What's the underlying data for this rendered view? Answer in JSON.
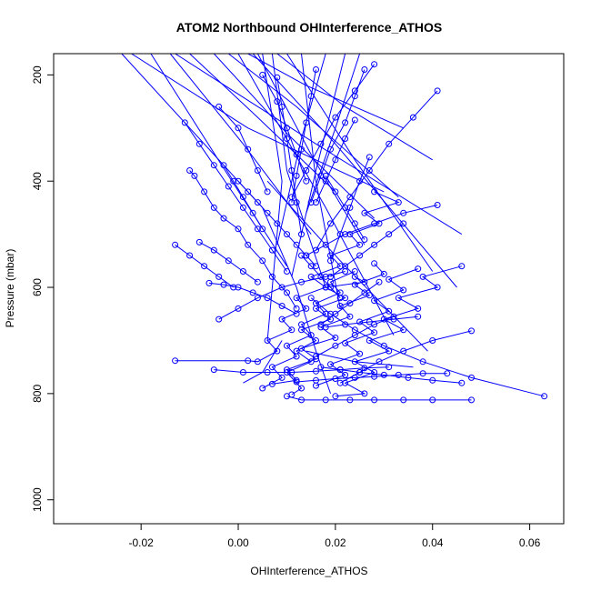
{
  "chart_data": {
    "type": "line",
    "title": "ATOM2 Northbound OHInterference_ATHOS",
    "xlabel": "OHInterference_ATHOS",
    "ylabel": "Pressure (mbar)",
    "xlim": [
      -0.038,
      0.067
    ],
    "ylim": [
      1045,
      160
    ],
    "y_inverted": true,
    "grid": false,
    "legend": "none",
    "line_color": "#0000ff",
    "marker": "open-circle",
    "x_ticks": [
      {
        "value": -0.02,
        "label": "-0.02"
      },
      {
        "value": 0.0,
        "label": "0.00"
      },
      {
        "value": 0.02,
        "label": "0.02"
      },
      {
        "value": 0.04,
        "label": "0.04"
      },
      {
        "value": 0.06,
        "label": "0.06"
      }
    ],
    "y_ticks": [
      {
        "value": 200,
        "label": "200"
      },
      {
        "value": 400,
        "label": "400"
      },
      {
        "value": 600,
        "label": "600"
      },
      {
        "value": 800,
        "label": "800"
      },
      {
        "value": 1000,
        "label": "1000"
      }
    ],
    "series": [
      {
        "x": [
          0.011,
          0.013,
          0.01,
          0.015,
          0.012,
          0.016,
          0.013,
          0.019,
          0.016,
          0.022,
          0.018,
          0.026,
          0.024
        ],
        "y": [
          802,
          790,
          760,
          740,
          720,
          700,
          680,
          660,
          640,
          620,
          600,
          590,
          580
        ]
      },
      {
        "x": [
          -0.013,
          0.002,
          0.004,
          0.008,
          0.006,
          0.011,
          0.009,
          0.014,
          0.012,
          0.018,
          0.015,
          0.021,
          0.019,
          0.025,
          0.023,
          0.029,
          0.026,
          0.033,
          0.028
        ],
        "y": [
          738,
          738,
          740,
          720,
          700,
          680,
          660,
          640,
          620,
          600,
          580,
          560,
          540,
          520,
          500,
          480,
          460,
          440,
          420
        ]
      },
      {
        "x": [
          0.02,
          0.026,
          0.022,
          0.028,
          0.024,
          0.031,
          0.027,
          0.034,
          0.03,
          0.037,
          0.033,
          0.041,
          0.038,
          0.046
        ],
        "y": [
          805,
          800,
          780,
          760,
          740,
          720,
          700,
          680,
          660,
          640,
          620,
          600,
          580,
          560
        ]
      },
      {
        "x": [
          0.007,
          0.012,
          0.01,
          0.016,
          0.013,
          0.02,
          0.017,
          0.023,
          0.021,
          0.027,
          0.024,
          0.03,
          0.028
        ],
        "y": [
          782,
          775,
          755,
          735,
          715,
          695,
          675,
          655,
          635,
          615,
          595,
          575,
          555
        ]
      },
      {
        "x": [
          0.005,
          0.009,
          0.007,
          0.012,
          0.01,
          0.015,
          0.013,
          0.018,
          0.016,
          0.021,
          0.019,
          0.024
        ],
        "y": [
          790,
          770,
          750,
          730,
          710,
          690,
          670,
          650,
          630,
          610,
          590,
          570
        ]
      },
      {
        "x": [
          0.016,
          0.022,
          0.019,
          0.025,
          0.022,
          0.028,
          0.025,
          0.031,
          0.028,
          0.034,
          0.031,
          0.037
        ],
        "y": [
          785,
          765,
          745,
          725,
          705,
          685,
          665,
          645,
          625,
          605,
          585,
          565
        ]
      },
      {
        "x": [
          -0.01,
          -0.009,
          -0.007,
          -0.005,
          -0.003,
          0.0,
          0.002,
          0.005,
          0.007,
          0.01,
          0.012
        ],
        "y": [
          380,
          390,
          420,
          450,
          470,
          490,
          520,
          550,
          580,
          610,
          640
        ]
      },
      {
        "x": [
          0.0,
          0.002,
          0.004,
          0.006,
          0.008,
          0.01,
          0.012,
          0.014,
          0.016
        ],
        "y": [
          400,
          420,
          440,
          460,
          480,
          500,
          520,
          540,
          560
        ]
      },
      {
        "x": [
          -0.011,
          -0.008,
          -0.005,
          -0.002,
          0.001,
          0.004,
          0.007,
          0.01
        ],
        "y": [
          290,
          330,
          370,
          410,
          450,
          490,
          530,
          570
        ]
      },
      {
        "x": [
          -0.006,
          -0.003,
          0.0,
          0.003,
          0.006,
          0.009,
          0.012
        ],
        "y": [
          592,
          595,
          600,
          610,
          620,
          635,
          650
        ]
      },
      {
        "x": [
          0.041,
          0.036,
          0.031,
          0.027,
          0.023,
          0.019,
          0.016
        ],
        "y": [
          230,
          280,
          330,
          380,
          430,
          480,
          530
        ]
      },
      {
        "x": [
          0.041,
          0.034,
          0.028,
          0.022,
          0.018,
          0.014
        ],
        "y": [
          445,
          460,
          480,
          500,
          520,
          540
        ]
      },
      {
        "x": [
          0.063,
          0.048,
          0.038,
          0.03,
          0.024,
          0.019,
          0.015
        ],
        "y": [
          805,
          770,
          740,
          710,
          680,
          650,
          620
        ]
      },
      {
        "x": [
          0.048,
          0.04,
          0.034,
          0.029,
          0.025,
          0.021
        ],
        "y": [
          682,
          700,
          720,
          740,
          760,
          780
        ]
      },
      {
        "x": [
          0.048,
          0.04,
          0.034,
          0.028,
          0.023,
          0.018,
          0.013,
          0.01
        ],
        "y": [
          812,
          812,
          812,
          812,
          812,
          812,
          812,
          805
        ]
      },
      {
        "x": [
          0.043,
          0.038,
          0.033,
          0.028,
          0.024,
          0.02,
          0.016,
          0.012
        ],
        "y": [
          762,
          762,
          765,
          768,
          770,
          772,
          775,
          778
        ]
      },
      {
        "x": [
          0.046,
          0.04,
          0.035,
          0.03,
          0.025,
          0.021,
          0.017
        ],
        "y": [
          780,
          775,
          770,
          765,
          760,
          755,
          750
        ]
      },
      {
        "x": [
          -0.005,
          0.001,
          0.006,
          0.011,
          0.016,
          0.021,
          0.026,
          0.031
        ],
        "y": [
          755,
          760,
          760,
          760,
          758,
          755,
          752,
          750
        ]
      },
      {
        "x": [
          -0.004,
          0.0,
          0.004,
          0.009,
          0.013,
          0.018,
          0.022
        ],
        "y": [
          660,
          640,
          620,
          600,
          590,
          580,
          570
        ]
      },
      {
        "x": [
          0.028,
          0.024,
          0.02,
          0.017,
          0.014,
          0.011
        ],
        "y": [
          180,
          230,
          280,
          330,
          380,
          430
        ]
      },
      {
        "x": [
          0.026,
          0.024,
          0.022,
          0.019,
          0.017,
          0.015
        ],
        "y": [
          190,
          240,
          290,
          340,
          390,
          440
        ]
      },
      {
        "x": [
          0.027,
          0.025,
          0.023,
          0.021,
          0.019
        ],
        "y": [
          355,
          400,
          450,
          500,
          550
        ]
      },
      {
        "x": [
          0.008,
          0.009,
          0.01,
          0.011,
          0.012,
          0.013
        ],
        "y": [
          205,
          260,
          320,
          380,
          440,
          500
        ]
      },
      {
        "x": [
          0.005,
          0.008,
          0.01,
          0.012,
          0.014
        ],
        "y": [
          200,
          250,
          300,
          350,
          400
        ]
      },
      {
        "x": [
          0.016,
          0.015,
          0.014,
          0.013,
          0.012,
          0.011
        ],
        "y": [
          190,
          240,
          290,
          340,
          390,
          440
        ]
      },
      {
        "x": [
          -0.004,
          0.0,
          0.002,
          0.004,
          0.006
        ],
        "y": [
          260,
          300,
          340,
          380,
          420
        ]
      },
      {
        "x": [
          -0.003,
          -0.001,
          0.001,
          0.003,
          0.005
        ],
        "y": [
          370,
          400,
          430,
          460,
          490
        ]
      },
      {
        "x": [
          0.029,
          0.026,
          0.023,
          0.02,
          0.017
        ],
        "y": [
          590,
          610,
          630,
          650,
          670
        ]
      },
      {
        "x": [
          0.032,
          0.028,
          0.024,
          0.02,
          0.016
        ],
        "y": [
          655,
          670,
          690,
          710,
          730
        ]
      },
      {
        "x": [
          0.037,
          0.032,
          0.027,
          0.022,
          0.018
        ],
        "y": [
          655,
          660,
          665,
          670,
          675
        ]
      },
      {
        "x": [
          0.034,
          0.031,
          0.028,
          0.025,
          0.022,
          0.019
        ],
        "y": [
          480,
          500,
          520,
          540,
          560,
          580
        ]
      },
      {
        "x": [
          0.018,
          0.02,
          0.022,
          0.024,
          0.026
        ],
        "y": [
          390,
          420,
          450,
          480,
          510
        ]
      },
      {
        "x": [
          -0.013,
          -0.01,
          -0.007,
          -0.004,
          -0.001
        ],
        "y": [
          520,
          540,
          560,
          580,
          600
        ]
      },
      {
        "x": [
          -0.008,
          -0.005,
          -0.002,
          0.001,
          0.004
        ],
        "y": [
          515,
          530,
          550,
          570,
          590
        ]
      },
      {
        "x": [
          0.024,
          0.022,
          0.02,
          0.018,
          0.016
        ],
        "y": [
          285,
          320,
          360,
          400,
          440
        ]
      },
      {
        "x": [
          0.013,
          0.015,
          0.017,
          0.019,
          0.021
        ],
        "y": [
          540,
          560,
          580,
          600,
          620
        ]
      }
    ],
    "lines_only": [
      [
        [
          -0.024,
          160
        ],
        [
          0.005,
          450
        ],
        [
          0.012,
          600
        ]
      ],
      [
        [
          -0.018,
          160
        ],
        [
          -0.002,
          390
        ],
        [
          0.01,
          560
        ]
      ],
      [
        [
          -0.014,
          160
        ],
        [
          0.001,
          330
        ],
        [
          0.015,
          500
        ]
      ],
      [
        [
          -0.01,
          160
        ],
        [
          0.004,
          280
        ],
        [
          0.02,
          420
        ]
      ],
      [
        [
          -0.005,
          160
        ],
        [
          0.01,
          310
        ],
        [
          0.028,
          470
        ]
      ],
      [
        [
          -0.002,
          160
        ],
        [
          0.012,
          260
        ],
        [
          0.033,
          430
        ]
      ],
      [
        [
          0.002,
          160
        ],
        [
          0.014,
          220
        ],
        [
          0.034,
          300
        ]
      ],
      [
        [
          0.004,
          160
        ],
        [
          0.015,
          350
        ],
        [
          0.026,
          520
        ]
      ],
      [
        [
          0.007,
          160
        ],
        [
          0.01,
          380
        ],
        [
          0.018,
          600
        ]
      ],
      [
        [
          0.013,
          160
        ],
        [
          0.016,
          400
        ],
        [
          0.021,
          640
        ]
      ],
      [
        [
          0.018,
          160
        ],
        [
          0.013,
          320
        ],
        [
          0.008,
          520
        ]
      ],
      [
        [
          0.022,
          160
        ],
        [
          0.016,
          380
        ],
        [
          0.011,
          580
        ]
      ],
      [
        [
          0.025,
          160
        ],
        [
          0.02,
          300
        ],
        [
          0.014,
          460
        ]
      ],
      [
        [
          0.008,
          160
        ],
        [
          0.022,
          260
        ],
        [
          0.04,
          360
        ]
      ],
      [
        [
          -0.022,
          160
        ],
        [
          0.002,
          300
        ],
        [
          0.03,
          420
        ]
      ],
      [
        [
          -0.013,
          160
        ],
        [
          0.016,
          330
        ],
        [
          0.046,
          500
        ]
      ],
      [
        [
          0.003,
          160
        ],
        [
          0.02,
          330
        ],
        [
          0.045,
          600
        ]
      ],
      [
        [
          0.01,
          160
        ],
        [
          0.024,
          360
        ],
        [
          0.04,
          570
        ]
      ],
      [
        [
          0.005,
          160
        ],
        [
          0.009,
          400
        ],
        [
          0.006,
          700
        ]
      ],
      [
        [
          0.0,
          160
        ],
        [
          0.018,
          450
        ],
        [
          0.032,
          690
        ]
      ],
      [
        [
          0.006,
          400
        ],
        [
          0.021,
          550
        ],
        [
          0.039,
          720
        ]
      ],
      [
        [
          0.012,
          600
        ],
        [
          0.016,
          720
        ],
        [
          0.019,
          800
        ]
      ],
      [
        [
          0.009,
          700
        ],
        [
          0.005,
          760
        ],
        [
          0.001,
          780
        ]
      ],
      [
        [
          0.014,
          720
        ],
        [
          0.024,
          740
        ],
        [
          0.036,
          750
        ]
      ]
    ]
  }
}
